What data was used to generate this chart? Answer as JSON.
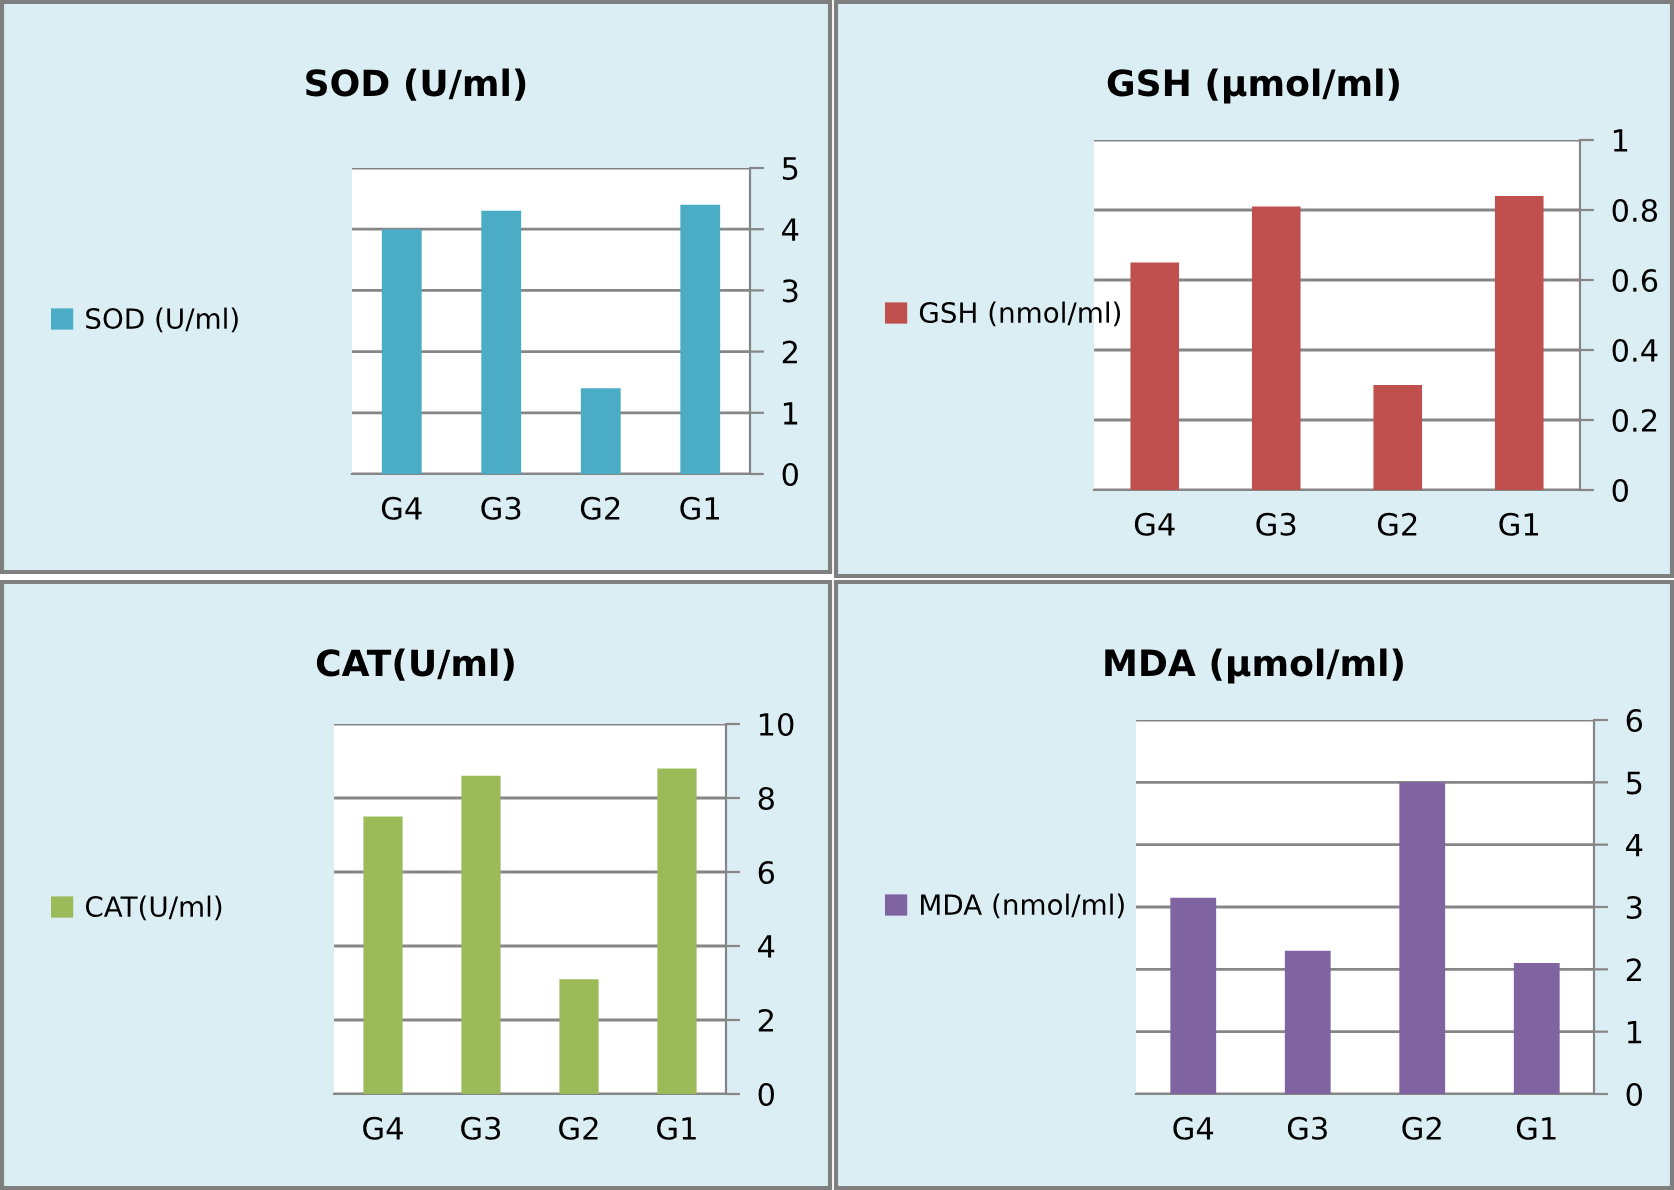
{
  "chart_data": [
    {
      "type": "bar",
      "title": "SOD (U/ml)",
      "categories": [
        "G4",
        "G3",
        "G2",
        "G1"
      ],
      "series": [
        {
          "name": "SOD (U/ml)",
          "color": "#4bacc6",
          "values": [
            4.0,
            4.3,
            1.4,
            4.4
          ]
        }
      ],
      "ylim": [
        0,
        5
      ],
      "yticks": [
        0,
        1,
        2,
        3,
        4,
        5
      ],
      "grid": "y",
      "legend": "left"
    },
    {
      "type": "bar",
      "title": "GSH (µmol/ml)",
      "categories": [
        "G4",
        "G3",
        "G2",
        "G1"
      ],
      "series": [
        {
          "name": "GSH (nmol/ml)",
          "color": "#c0504d",
          "values": [
            0.65,
            0.81,
            0.3,
            0.84
          ]
        }
      ],
      "ylim": [
        0,
        1
      ],
      "yticks": [
        0,
        0.2,
        0.4,
        0.6,
        0.8,
        1
      ],
      "grid": "y",
      "legend": "left"
    },
    {
      "type": "bar",
      "title": "CAT(U/ml)",
      "categories": [
        "G4",
        "G3",
        "G2",
        "G1"
      ],
      "series": [
        {
          "name": "CAT(U/ml)",
          "color": "#9bbb59",
          "values": [
            7.5,
            8.6,
            3.1,
            8.8
          ]
        }
      ],
      "ylim": [
        0,
        10
      ],
      "yticks": [
        0,
        2,
        4,
        6,
        8,
        10
      ],
      "grid": "y",
      "legend": "left"
    },
    {
      "type": "bar",
      "title": "MDA (µmol/ml)",
      "categories": [
        "G4",
        "G3",
        "G2",
        "G1"
      ],
      "series": [
        {
          "name": "MDA (nmol/ml)",
          "color": "#8064a2",
          "values": [
            3.15,
            2.3,
            5.0,
            2.1
          ]
        }
      ],
      "ylim": [
        0,
        6
      ],
      "yticks": [
        0,
        1,
        2,
        3,
        4,
        5,
        6
      ],
      "grid": "y",
      "legend": "left"
    }
  ]
}
